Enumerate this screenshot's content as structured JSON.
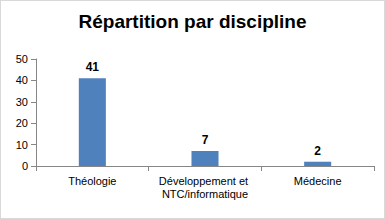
{
  "chart_data": {
    "type": "bar",
    "title": "Répartition par discipline",
    "categories": [
      "Théologie",
      "Développement et NTC/informatique",
      "Médecine"
    ],
    "values": [
      41,
      7,
      2
    ],
    "color": "#4f81bd",
    "ylim": [
      0,
      50
    ],
    "yticks": [
      0,
      10,
      20,
      30,
      40,
      50
    ],
    "grid": false,
    "data_labels": true
  }
}
